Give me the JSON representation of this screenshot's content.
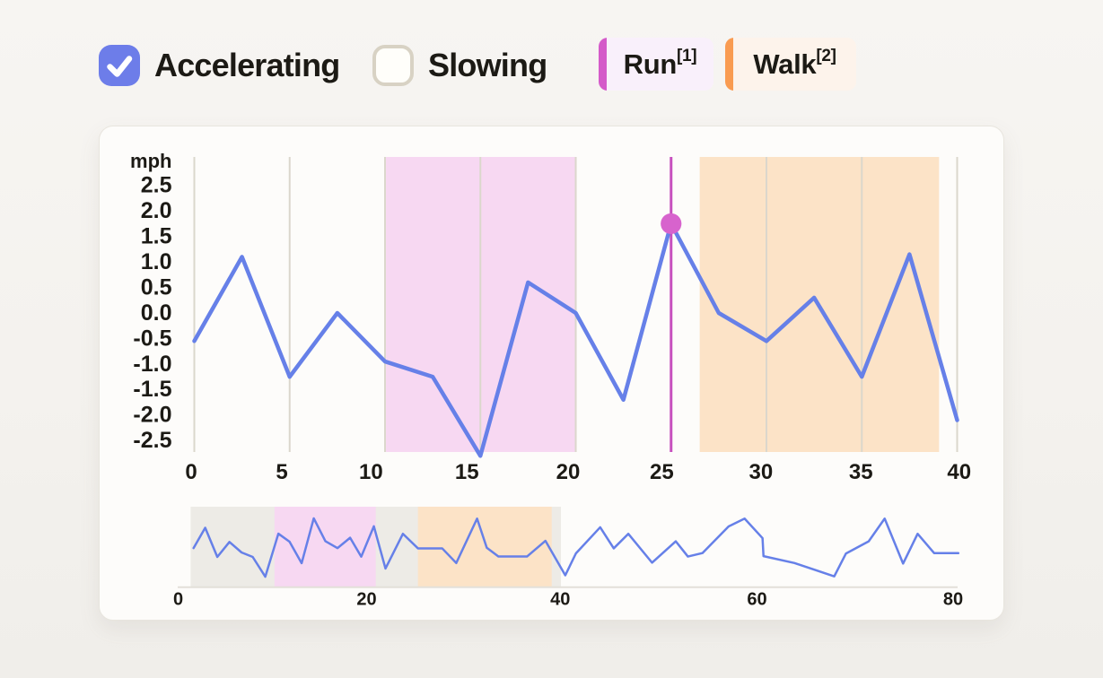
{
  "toolbar": {
    "checkboxes": [
      {
        "label": "Accelerating",
        "checked": true
      },
      {
        "label": "Slowing",
        "checked": false
      }
    ],
    "legend": [
      {
        "label": "Run",
        "superscript": "[1]",
        "bar_color": "#d45ac9",
        "bg_color": "#f9f0fb"
      },
      {
        "label": "Walk",
        "superscript": "[2]",
        "bar_color": "#f99b51",
        "bg_color": "#fdf3eb"
      }
    ]
  },
  "colors": {
    "accent_blue": "#6680e8",
    "checkbox_blue": "#6d7de9",
    "run_region": "#f7d8f2",
    "walk_region": "#fce3c7",
    "cursor_line": "#c750be",
    "cursor_dot": "#d763cd",
    "grid_line": "#dbd7cc",
    "overview_selection": "#edebe6",
    "overview_axis": "#e3e0d9",
    "text": "#1c1a15"
  },
  "chart_data": [
    {
      "type": "line",
      "name": "speed-detail",
      "ylabel": "mph",
      "x": [
        0,
        2.5,
        5,
        7.5,
        10,
        12.5,
        15,
        17.5,
        20,
        22.5,
        25,
        27.5,
        30,
        32.5,
        35,
        37.5,
        40
      ],
      "series": [
        {
          "name": "speed",
          "color": "#6680e8",
          "values": [
            -0.55,
            1.1,
            -1.25,
            0.0,
            -0.95,
            -1.25,
            -2.8,
            0.6,
            0.0,
            -1.7,
            1.75,
            0.0,
            -0.55,
            0.3,
            -1.25,
            1.15,
            -2.1
          ]
        }
      ],
      "xlim": [
        0,
        40
      ],
      "ylim": [
        -2.9,
        3.06
      ],
      "xtick_labels": [
        "0",
        "5",
        "10",
        "15",
        "20",
        "25",
        "30",
        "35",
        "40"
      ],
      "xticks": [
        0,
        5,
        10,
        15,
        20,
        25,
        30,
        35,
        40
      ],
      "ytick_labels": [
        "2.5",
        "2.0",
        "1.5",
        "1.0",
        "0.5",
        "0.0",
        "-0.5",
        "-1.0",
        "-1.5",
        "-2.0",
        "-2.5"
      ],
      "grid": "vertical",
      "legend_position": "top",
      "regions": [
        {
          "label": "Run",
          "from": 10.05,
          "to": 20.05,
          "color": "#f7d8f2"
        },
        {
          "label": "Walk",
          "from": 26.5,
          "to": 39.05,
          "color": "#fce3c7"
        }
      ],
      "cursor": {
        "x": 25,
        "y": 1.75,
        "line_color": "#c750be",
        "dot_color": "#d763cd"
      }
    },
    {
      "type": "line",
      "name": "speed-overview",
      "points": [
        [
          1.6,
          -0.58
        ],
        [
          2.8,
          1.01
        ],
        [
          4.05,
          -1.27
        ],
        [
          5.3,
          -0.1
        ],
        [
          6.55,
          -0.92
        ],
        [
          7.7,
          -1.27
        ],
        [
          9.0,
          -2.82
        ],
        [
          10.35,
          0.55
        ],
        [
          11.5,
          -0.08
        ],
        [
          12.75,
          -1.76
        ],
        [
          14.0,
          1.75
        ],
        [
          15.2,
          -0.04
        ],
        [
          16.45,
          -0.58
        ],
        [
          17.75,
          0.23
        ],
        [
          18.9,
          -1.25
        ],
        [
          20.2,
          1.13
        ],
        [
          21.4,
          -2.18
        ],
        [
          23.2,
          0.54
        ],
        [
          24.75,
          -0.6
        ],
        [
          27.25,
          -0.6
        ],
        [
          28.7,
          -1.75
        ],
        [
          30.85,
          1.73
        ],
        [
          31.85,
          -0.55
        ],
        [
          33.05,
          -1.24
        ],
        [
          36.0,
          -1.24
        ],
        [
          37.9,
          -0.01
        ],
        [
          39.95,
          -2.71
        ],
        [
          41.05,
          -0.99
        ],
        [
          43.55,
          1.05
        ],
        [
          44.95,
          -0.6
        ],
        [
          46.45,
          0.54
        ],
        [
          48.9,
          -1.72
        ],
        [
          51.35,
          -0.05
        ],
        [
          52.6,
          -1.24
        ],
        [
          54.1,
          -0.97
        ],
        [
          56.8,
          1.12
        ],
        [
          58.45,
          1.73
        ],
        [
          60.3,
          0.2
        ],
        [
          60.4,
          -1.21
        ],
        [
          63.6,
          -1.75
        ],
        [
          67.7,
          -2.79
        ],
        [
          68.9,
          -1.01
        ],
        [
          71.25,
          -0.05
        ],
        [
          72.9,
          1.73
        ],
        [
          74.8,
          -1.79
        ],
        [
          76.3,
          0.54
        ],
        [
          78.0,
          -0.97
        ],
        [
          80.5,
          -0.97
        ]
      ],
      "xlim": [
        0,
        80.5
      ],
      "xticks": [
        0,
        20,
        40,
        60,
        80
      ],
      "xtick_labels": [
        "0",
        "20",
        "40",
        "60",
        "80"
      ],
      "selection": {
        "from": 1.3,
        "to": 39.5,
        "color": "#edebe6"
      },
      "regions": [
        {
          "label": "Run",
          "from": 9.95,
          "to": 20.4,
          "color": "#f7d8f2"
        },
        {
          "label": "Walk",
          "from": 24.75,
          "to": 38.55,
          "color": "#fce3c7"
        }
      ],
      "line_color": "#6680e8"
    }
  ]
}
